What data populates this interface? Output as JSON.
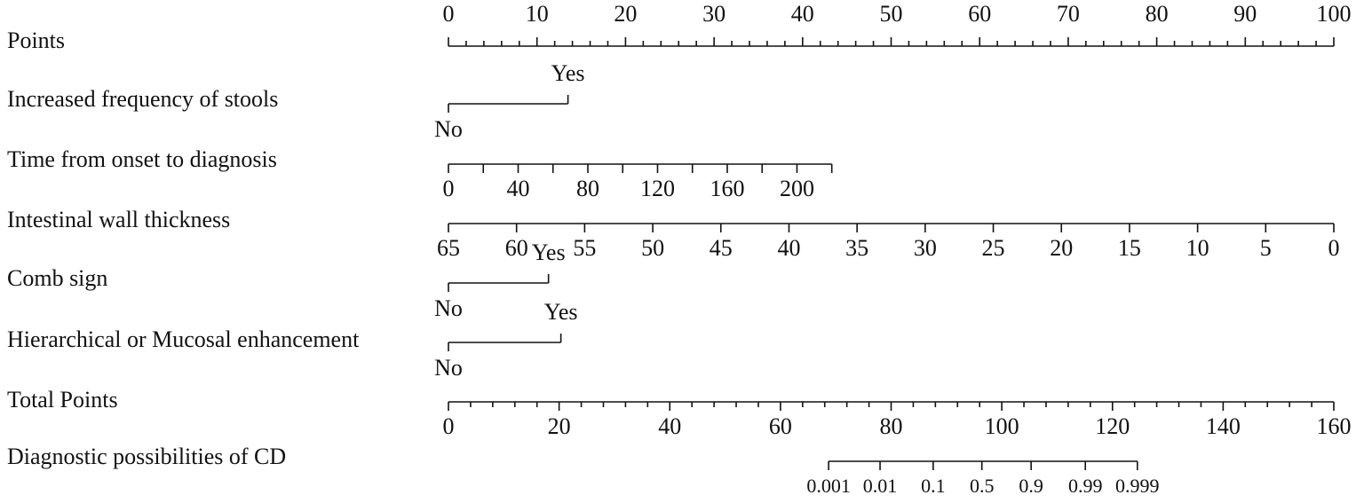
{
  "chart_data": {
    "type": "nomogram",
    "points_lim": [
      0,
      100
    ],
    "total_lim": [
      0,
      160
    ],
    "rows": [
      {
        "label": "Points",
        "kind": "linear",
        "scale": "points",
        "labels": "above",
        "lim": [
          0,
          100
        ],
        "points_lim": [
          0,
          100
        ],
        "ticks": [
          0,
          10,
          20,
          30,
          40,
          50,
          60,
          70,
          80,
          90,
          100
        ],
        "minor_divisions": 5
      },
      {
        "label": "Increased frequency of stools",
        "kind": "categorical",
        "scale": "points",
        "ticks": [
          "No",
          "Yes"
        ],
        "points": [
          0,
          13.5
        ]
      },
      {
        "label": "Time from onset to diagnosis",
        "kind": "linear",
        "scale": "points",
        "labels": "below",
        "lim": [
          0,
          220
        ],
        "points_lim": [
          0,
          43.3
        ],
        "ticks": [
          0,
          40,
          80,
          120,
          160,
          200
        ],
        "minor_ticks": [
          20,
          60,
          100,
          140,
          180,
          220
        ]
      },
      {
        "label": "Intestinal wall thickness",
        "kind": "linear",
        "scale": "points",
        "labels": "below",
        "lim": [
          65,
          0
        ],
        "points_lim": [
          0,
          100
        ],
        "ticks": [
          65,
          60,
          55,
          50,
          45,
          40,
          35,
          30,
          25,
          20,
          15,
          10,
          5,
          0
        ]
      },
      {
        "label": "Comb sign",
        "kind": "categorical",
        "scale": "points",
        "ticks": [
          "No",
          "Yes"
        ],
        "points": [
          0,
          11.3
        ]
      },
      {
        "label": "Hierarchical or Mucosal enhancement",
        "kind": "categorical",
        "scale": "points",
        "ticks": [
          "No",
          "Yes"
        ],
        "points": [
          0,
          12.7
        ]
      },
      {
        "label": "Total Points",
        "kind": "linear",
        "scale": "total",
        "labels": "below",
        "lim": [
          0,
          160
        ],
        "points_lim": [
          0,
          160
        ],
        "ticks": [
          0,
          20,
          40,
          60,
          80,
          100,
          120,
          140,
          160
        ],
        "minor_divisions": 5
      },
      {
        "label": "Diagnostic possibilities of CD",
        "kind": "mapped",
        "scale": "total",
        "labels": "below",
        "ticks": [
          0.001,
          0.01,
          0.1,
          0.5,
          0.9,
          0.99,
          0.999
        ],
        "points": [
          68.7,
          78.0,
          87.6,
          96.4,
          105.3,
          115.1,
          124.5
        ]
      }
    ]
  }
}
